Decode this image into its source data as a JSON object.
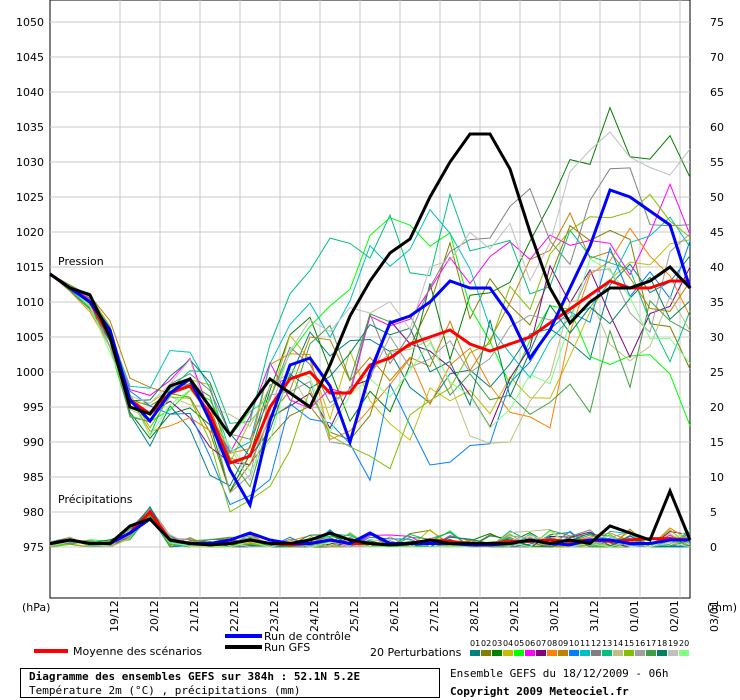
{
  "chart_data": {
    "type": "line",
    "left_axis_unit": "(hPa)",
    "right_axis_unit": "(mm)",
    "pressure_ticks": [
      1050,
      1045,
      1040,
      1035,
      1030,
      1025,
      1020,
      1015,
      1010,
      1005,
      1000,
      995,
      990,
      985,
      980,
      975
    ],
    "precip_ticks": [
      75,
      70,
      65,
      60,
      55,
      50,
      45,
      40,
      35,
      30,
      25,
      20,
      15,
      10,
      5,
      0
    ],
    "ylim_pressure": [
      970,
      1052
    ],
    "x_dates": [
      "19/12",
      "20/12",
      "21/12",
      "22/12",
      "23/12",
      "24/12",
      "25/12",
      "26/12",
      "27/12",
      "28/12",
      "29/12",
      "30/12",
      "31/12",
      "01/01",
      "02/01",
      "03/01"
    ],
    "section_labels": {
      "pressure": "Pression",
      "precip": "Précipitations"
    },
    "x_hours": [
      0,
      12,
      24,
      36,
      48,
      60,
      72,
      84,
      96,
      108,
      120,
      132,
      144,
      156,
      168,
      180,
      192,
      204,
      216,
      228,
      240,
      252,
      264,
      276,
      288,
      300,
      312,
      324,
      336,
      348,
      360,
      372,
      384
    ],
    "series": [
      {
        "name": "Moyenne des scénarios",
        "color": "#ff0000",
        "width": 3,
        "pressure": [
          1014,
          1012,
          1010,
          1005,
          996,
          994,
          997,
          998,
          994,
          987,
          988,
          995,
          999,
          1000,
          997,
          997,
          1001,
          1002,
          1004,
          1005,
          1006,
          1004,
          1003,
          1004,
          1005,
          1007,
          1009,
          1011,
          1013,
          1012,
          1012,
          1013,
          1013
        ],
        "precip": [
          0.5,
          1,
          0.5,
          0.5,
          2,
          5,
          1,
          0.5,
          0.3,
          0.5,
          1,
          0.5,
          0.3,
          0.5,
          1,
          0.5,
          0.5,
          0.3,
          0.5,
          1,
          0.8,
          0.5,
          0.5,
          0.8,
          0.8,
          1,
          0.8,
          1,
          0.8,
          1,
          1.2,
          1.2,
          1
        ]
      },
      {
        "name": "Run de contrôle",
        "color": "#0000ff",
        "width": 3,
        "pressure": [
          1014,
          1012,
          1010,
          1006,
          996,
          993,
          997,
          999,
          993,
          986,
          981,
          993,
          1001,
          1002,
          998,
          990,
          1000,
          1007,
          1008,
          1010,
          1013,
          1012,
          1012,
          1008,
          1002,
          1006,
          1012,
          1018,
          1026,
          1025,
          1023,
          1021,
          1012
        ],
        "precip": [
          0.5,
          1,
          0.5,
          0.5,
          2,
          4,
          1,
          0.5,
          0.5,
          1,
          2,
          1,
          0.5,
          0.5,
          1,
          0.5,
          2,
          0.5,
          0.5,
          0.5,
          0.5,
          0.3,
          0.3,
          0.5,
          1,
          0.5,
          0.3,
          1,
          1,
          0.5,
          0.5,
          1,
          1
        ]
      },
      {
        "name": "Run GFS",
        "color": "#000000",
        "width": 3,
        "pressure": [
          1014,
          1012,
          1011,
          1005,
          995,
          994,
          998,
          999,
          995,
          991,
          995,
          999,
          997,
          995,
          1001,
          1008,
          1013,
          1017,
          1019,
          1025,
          1030,
          1034,
          1034,
          1029,
          1020,
          1012,
          1007,
          1010,
          1012,
          1012,
          1013,
          1015,
          1012
        ],
        "precip": [
          0.5,
          1,
          0.5,
          0.5,
          3,
          4,
          1,
          0.5,
          0.3,
          0.5,
          1,
          0.5,
          0.5,
          1,
          2,
          1,
          0.5,
          0.3,
          0.5,
          1,
          0.5,
          0.5,
          0.5,
          0.5,
          1,
          0.5,
          1,
          0.5,
          3,
          2,
          1,
          8,
          1
        ]
      }
    ],
    "perturbation_colors": [
      "#008080",
      "#808000",
      "#008000",
      "#c0c000",
      "#00ff00",
      "#ff00ff",
      "#800080",
      "#ff8000",
      "#c08000",
      "#0080ff",
      "#00c0c0",
      "#808080",
      "#00c080",
      "#c0c080",
      "#80c000",
      "#a0a0a0",
      "#40a040",
      "#008060",
      "#c0c0c0",
      "#80ff80"
    ]
  },
  "legend": {
    "mean_label": "Moyenne des scénarios",
    "control_label": "Run de contrôle",
    "gfs_label": "Run GFS",
    "perturb_label": "20 Perturbations",
    "perturb_numbers": [
      "01",
      "02",
      "03",
      "04",
      "05",
      "06",
      "07",
      "08",
      "09",
      "10",
      "11",
      "12",
      "13",
      "14",
      "15",
      "16",
      "17",
      "18",
      "19",
      "20"
    ]
  },
  "info": {
    "title_line": "Diagramme des ensembles GEFS sur 384h : 52.1N 5.2E",
    "subtitle_line": "Température 2m (°C) , précipitations (mm)",
    "ensemble_line": "Ensemble GEFS du 18/12/2009 - 06h",
    "copyright": "Copyright 2009 Meteociel.fr"
  }
}
